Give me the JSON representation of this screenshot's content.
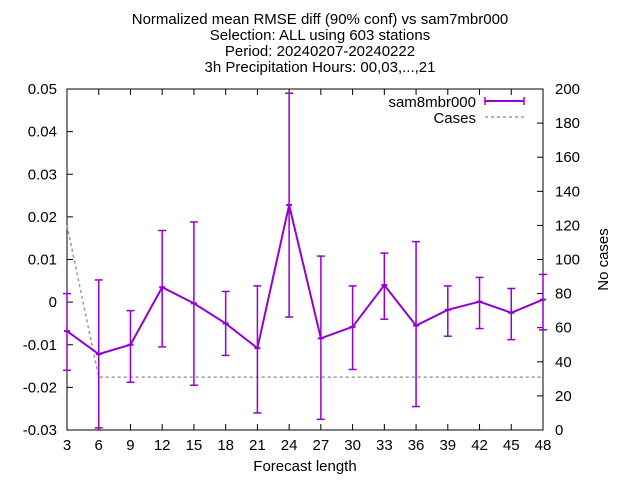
{
  "chart_data": {
    "type": "line",
    "title_lines": [
      "Normalized mean RMSE diff (90% conf) vs sam7mbr000",
      "Selection: ALL using   603 stations",
      "Period: 20240207-20240222",
      "3h Precipitation   Hours: 00,03,...,21"
    ],
    "xlabel": "Forecast length",
    "ylabel_right": "No cases",
    "x": [
      3,
      6,
      9,
      12,
      15,
      18,
      21,
      24,
      27,
      30,
      33,
      36,
      39,
      42,
      45,
      48
    ],
    "xlim": [
      3,
      48
    ],
    "x_ticks": [
      "3",
      "6",
      "9",
      "12",
      "15",
      "18",
      "21",
      "24",
      "27",
      "30",
      "33",
      "36",
      "39",
      "42",
      "45",
      "48"
    ],
    "ylim_left": [
      -0.03,
      0.05
    ],
    "y_ticks_left": [
      "-0.03",
      "-0.02",
      "-0.01",
      "0",
      "0.01",
      "0.02",
      "0.03",
      "0.04",
      "0.05"
    ],
    "ylim_right": [
      0,
      200
    ],
    "y_ticks_right": [
      "0",
      "20",
      "40",
      "60",
      "80",
      "100",
      "120",
      "140",
      "160",
      "180",
      "200"
    ],
    "grid": false,
    "legend_position": "top-right",
    "series": [
      {
        "name": "sam8mbr000",
        "axis": "left",
        "style": "line-errorbars",
        "color": "#9400d3",
        "values": [
          -0.0068,
          -0.0122,
          -0.01,
          0.0035,
          -0.0003,
          -0.005,
          -0.0108,
          0.0228,
          -0.0085,
          -0.0058,
          0.004,
          -0.0055,
          -0.0018,
          0.0001,
          -0.0025,
          0.0006
        ],
        "err_low": [
          -0.016,
          -0.0295,
          -0.0188,
          -0.0105,
          -0.0195,
          -0.0125,
          -0.026,
          -0.0035,
          -0.0275,
          -0.0158,
          -0.004,
          -0.0245,
          -0.008,
          -0.0062,
          -0.0088,
          -0.0065
        ],
        "err_high": [
          0.002,
          0.0052,
          -0.002,
          0.0168,
          0.0188,
          0.0025,
          0.0038,
          0.049,
          0.0108,
          0.0038,
          0.0115,
          0.0142,
          0.0038,
          0.0058,
          0.0032,
          0.0065
        ]
      },
      {
        "name": "Cases",
        "axis": "right",
        "style": "dashed",
        "color": "#999999",
        "values": [
          120,
          31,
          31,
          31,
          31,
          31,
          31,
          31,
          31,
          31,
          31,
          31,
          31,
          31,
          31,
          31
        ]
      }
    ]
  }
}
